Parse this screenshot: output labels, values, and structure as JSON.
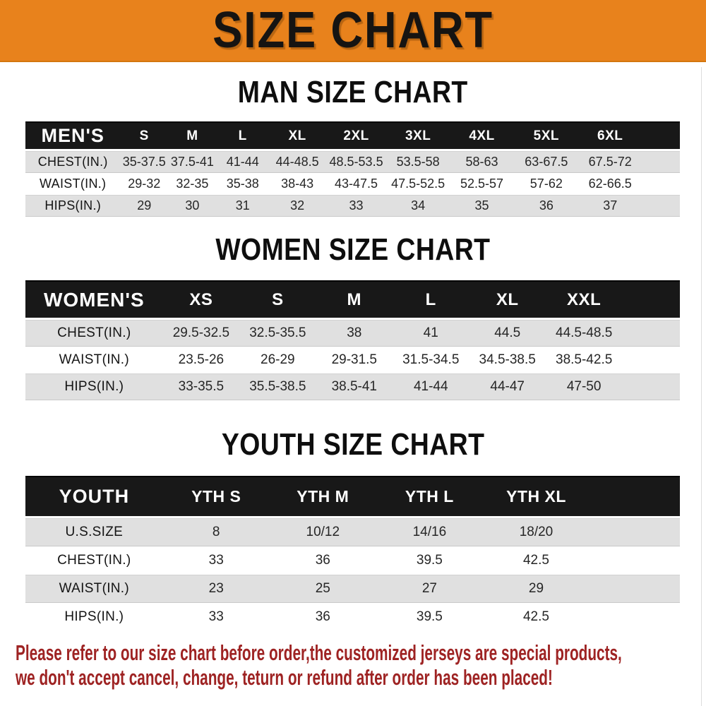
{
  "banner": {
    "title": "SIZE CHART",
    "bg_color": "#e8821c",
    "text_color": "#161412"
  },
  "sections": [
    {
      "id": "men",
      "title": "MAN SIZE CHART",
      "table": {
        "header_label": "MEN'S",
        "columns": [
          "S",
          "M",
          "L",
          "XL",
          "2XL",
          "3XL",
          "4XL",
          "5XL",
          "6XL"
        ],
        "rows": [
          {
            "label": "CHEST(IN.)",
            "values": [
              "35-37.5",
              "37.5-41",
              "41-44",
              "44-48.5",
              "48.5-53.5",
              "53.5-58",
              "58-63",
              "63-67.5",
              "67.5-72"
            ]
          },
          {
            "label": "WAIST(IN.)",
            "values": [
              "29-32",
              "32-35",
              "35-38",
              "38-43",
              "43-47.5",
              "47.5-52.5",
              "52.5-57",
              "57-62",
              "62-66.5"
            ]
          },
          {
            "label": "HIPS(IN.)",
            "values": [
              "29",
              "30",
              "31",
              "32",
              "33",
              "34",
              "35",
              "36",
              "37"
            ]
          }
        ]
      }
    },
    {
      "id": "women",
      "title": "WOMEN SIZE CHART",
      "table": {
        "header_label": "WOMEN'S",
        "columns": [
          "XS",
          "S",
          "M",
          "L",
          "XL",
          "XXL"
        ],
        "rows": [
          {
            "label": "CHEST(IN.)",
            "values": [
              "29.5-32.5",
              "32.5-35.5",
              "38",
              "41",
              "44.5",
              "44.5-48.5"
            ]
          },
          {
            "label": "WAIST(IN.)",
            "values": [
              "23.5-26",
              "26-29",
              "29-31.5",
              "31.5-34.5",
              "34.5-38.5",
              "38.5-42.5"
            ]
          },
          {
            "label": "HIPS(IN.)",
            "values": [
              "33-35.5",
              "35.5-38.5",
              "38.5-41",
              "41-44",
              "44-47",
              "47-50"
            ]
          }
        ]
      }
    },
    {
      "id": "youth",
      "title": "YOUTH SIZE CHART",
      "table": {
        "header_label": "YOUTH",
        "columns": [
          "YTH S",
          "YTH M",
          "YTH L",
          "YTH XL"
        ],
        "rows": [
          {
            "label": "U.S.SIZE",
            "values": [
              "8",
              "10/12",
              "14/16",
              "18/20"
            ]
          },
          {
            "label": "CHEST(IN.)",
            "values": [
              "33",
              "36",
              "39.5",
              "42.5"
            ]
          },
          {
            "label": "WAIST(IN.)",
            "values": [
              "23",
              "25",
              "27",
              "29"
            ]
          },
          {
            "label": "HIPS(IN.)",
            "values": [
              "33",
              "36",
              "39.5",
              "42.5"
            ]
          }
        ]
      }
    }
  ],
  "disclaimer": {
    "line1": "Please refer to our size chart before order,the customized jerseys are special products,",
    "line2": "we don't accept cancel, change, teturn or refund after order has been placed!",
    "color": "#9e2323"
  },
  "colors": {
    "header_bar": "#181818",
    "stripe_row": "#e0e0e0",
    "banner_orange": "#e8821c"
  }
}
